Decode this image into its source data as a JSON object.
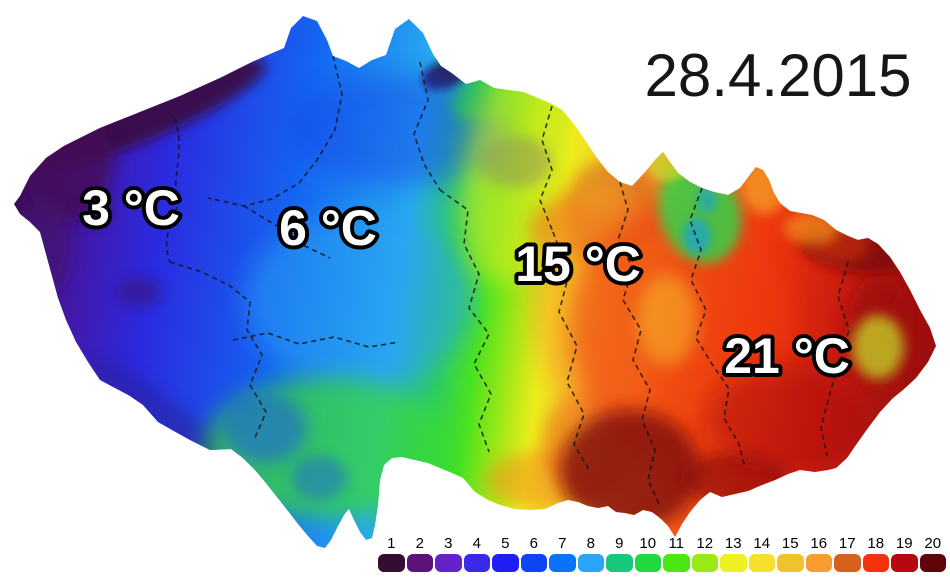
{
  "date_label": "28.4.2015",
  "map": {
    "description": "temperature-map",
    "temperature_labels": [
      {
        "text": "3 °C"
      },
      {
        "text": "6 °C"
      },
      {
        "text": "15 °C"
      },
      {
        "text": "21 °C"
      }
    ]
  },
  "legend": {
    "items": [
      {
        "value": "1",
        "color": "#350b31"
      },
      {
        "value": "2",
        "color": "#5c1278"
      },
      {
        "value": "3",
        "color": "#6522cc"
      },
      {
        "value": "4",
        "color": "#3a2ae6"
      },
      {
        "value": "5",
        "color": "#1f1ef5"
      },
      {
        "value": "6",
        "color": "#0d45f2"
      },
      {
        "value": "7",
        "color": "#0b72fa"
      },
      {
        "value": "8",
        "color": "#29a5f8"
      },
      {
        "value": "9",
        "color": "#17c87c"
      },
      {
        "value": "10",
        "color": "#1fd93f"
      },
      {
        "value": "11",
        "color": "#4ce615"
      },
      {
        "value": "12",
        "color": "#9ae814"
      },
      {
        "value": "13",
        "color": "#eef01f"
      },
      {
        "value": "14",
        "color": "#f6e02c"
      },
      {
        "value": "15",
        "color": "#f2c12e"
      },
      {
        "value": "16",
        "color": "#f89b31"
      },
      {
        "value": "17",
        "color": "#d95f1c"
      },
      {
        "value": "18",
        "color": "#f4320c"
      },
      {
        "value": "19",
        "color": "#b5070f"
      },
      {
        "value": "20",
        "color": "#5f0408"
      }
    ]
  }
}
